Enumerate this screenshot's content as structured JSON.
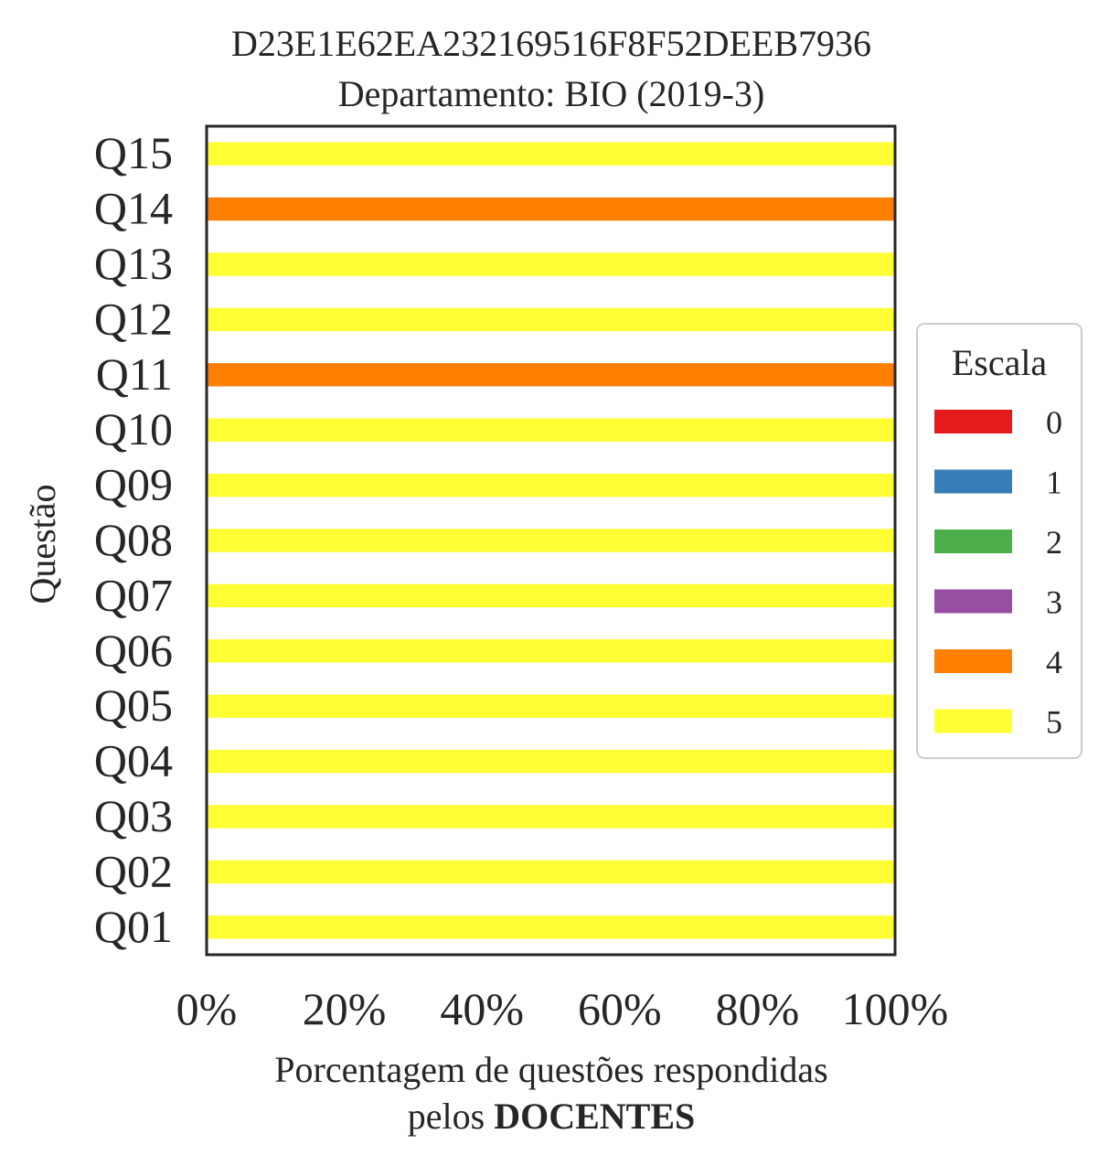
{
  "chart_data": {
    "type": "bar",
    "orientation": "horizontal",
    "stacked": true,
    "title_line1": "D23E1E62EA232169516F8F52DEEB7936",
    "title_line2": "Departamento: BIO (2019-3)",
    "ylabel": "Questão",
    "xlabel_line1": "Porcentagem de questões respondidas",
    "xlabel_line2_prefix": "pelos",
    "xlabel_line2_bold": "DOCENTES",
    "xlim": [
      0,
      100
    ],
    "x_ticks": [
      0,
      20,
      40,
      60,
      80,
      100
    ],
    "x_tick_labels": [
      "0%",
      "20%",
      "40%",
      "60%",
      "80%",
      "100%"
    ],
    "categories": [
      "Q01",
      "Q02",
      "Q03",
      "Q04",
      "Q05",
      "Q06",
      "Q07",
      "Q08",
      "Q09",
      "Q10",
      "Q11",
      "Q12",
      "Q13",
      "Q14",
      "Q15"
    ],
    "series": [
      {
        "name": "0",
        "color": "#e41a1c",
        "values": [
          0,
          0,
          0,
          0,
          0,
          0,
          0,
          0,
          0,
          0,
          0,
          0,
          0,
          0,
          0
        ]
      },
      {
        "name": "1",
        "color": "#377eb8",
        "values": [
          0,
          0,
          0,
          0,
          0,
          0,
          0,
          0,
          0,
          0,
          0,
          0,
          0,
          0,
          0
        ]
      },
      {
        "name": "2",
        "color": "#4daf4a",
        "values": [
          0,
          0,
          0,
          0,
          0,
          0,
          0,
          0,
          0,
          0,
          0,
          0,
          0,
          0,
          0
        ]
      },
      {
        "name": "3",
        "color": "#984ea3",
        "values": [
          0,
          0,
          0,
          0,
          0,
          0,
          0,
          0,
          0,
          0,
          0,
          0,
          0,
          0,
          0
        ]
      },
      {
        "name": "4",
        "color": "#ff7f00",
        "values": [
          0,
          0,
          0,
          0,
          0,
          0,
          0,
          0,
          0,
          0,
          100,
          0,
          0,
          100,
          0
        ]
      },
      {
        "name": "5",
        "color": "#ffff33",
        "values": [
          100,
          100,
          100,
          100,
          100,
          100,
          100,
          100,
          100,
          100,
          0,
          100,
          100,
          0,
          100
        ]
      }
    ],
    "legend": {
      "title": "Escala",
      "position": "right"
    },
    "grid": false
  }
}
